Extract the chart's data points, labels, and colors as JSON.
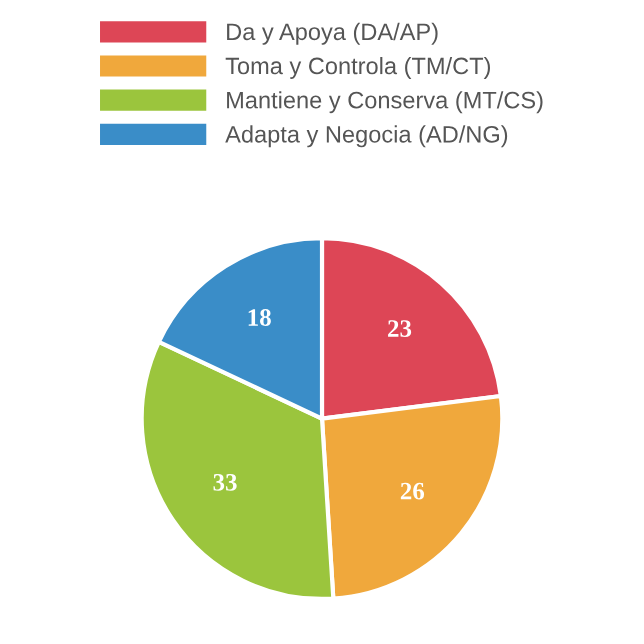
{
  "chart_data": {
    "type": "pie",
    "categories": [
      "Da y Apoya (DA/AP)",
      "Toma y Controla (TM/CT)",
      "Mantiene y Conserva (MT/CS)",
      "Adapta y Negocia (AD/NG)"
    ],
    "values": [
      23,
      26,
      33,
      18
    ],
    "colors": [
      "#dd4656",
      "#f0a83c",
      "#9bc53d",
      "#3a8dc8"
    ],
    "data_labels": true,
    "legend": "top"
  }
}
